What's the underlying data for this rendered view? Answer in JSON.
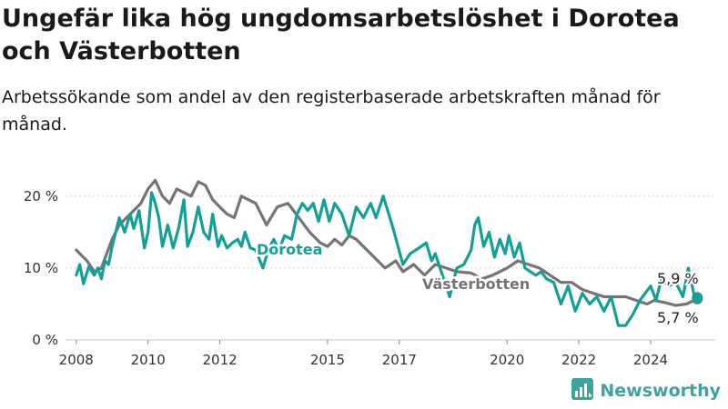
{
  "title": "Ungefär lika hög ungdomsarbetslöshet i Dorotea och Västerbotten",
  "subtitle": "Arbetssökande som andel av den registerbaserade arbetskraften månad för månad.",
  "brand": {
    "name": "Newsworthy",
    "icon": "bar-chart-logo-icon"
  },
  "colors": {
    "dorotea": "#14a096",
    "vasterbotten": "#777477",
    "grid": "#d0d0d0"
  },
  "chart_data": {
    "type": "line",
    "title": "Ungefär lika hög ungdomsarbetslöshet i Dorotea och Västerbotten",
    "subtitle": "Arbetssökande som andel av den registerbaserade arbetskraften månad för månad.",
    "xlabel": "",
    "ylabel": "",
    "x_unit": "year",
    "xlim": [
      2007.6,
      2025.8
    ],
    "ylim": [
      0,
      22
    ],
    "grid": true,
    "yticks": [
      {
        "value": 0,
        "label": "0 %"
      },
      {
        "value": 10,
        "label": "10 %"
      },
      {
        "value": 20,
        "label": "20 %"
      }
    ],
    "xticks": [
      {
        "value": 2008,
        "label": "2008"
      },
      {
        "value": 2010,
        "label": "2010"
      },
      {
        "value": 2012,
        "label": "2012"
      },
      {
        "value": 2015,
        "label": "2015"
      },
      {
        "value": 2017,
        "label": "2017"
      },
      {
        "value": 2020,
        "label": "2020"
      },
      {
        "value": 2022,
        "label": "2022"
      },
      {
        "value": 2024,
        "label": "2024"
      }
    ],
    "series": [
      {
        "name": "Västerbotten",
        "color": "#777477",
        "end_label": "5,7 %",
        "points": [
          [
            2008.0,
            12.5
          ],
          [
            2008.3,
            11.0
          ],
          [
            2008.5,
            9.5
          ],
          [
            2008.7,
            10.0
          ],
          [
            2009.0,
            14.0
          ],
          [
            2009.2,
            16.0
          ],
          [
            2009.5,
            17.5
          ],
          [
            2009.8,
            19.0
          ],
          [
            2010.0,
            21.0
          ],
          [
            2010.2,
            22.2
          ],
          [
            2010.4,
            20.0
          ],
          [
            2010.6,
            19.0
          ],
          [
            2010.8,
            21.0
          ],
          [
            2011.0,
            20.5
          ],
          [
            2011.2,
            20.0
          ],
          [
            2011.4,
            22.0
          ],
          [
            2011.6,
            21.5
          ],
          [
            2011.8,
            19.5
          ],
          [
            2012.0,
            18.5
          ],
          [
            2012.2,
            17.5
          ],
          [
            2012.4,
            17.0
          ],
          [
            2012.6,
            20.0
          ],
          [
            2012.8,
            19.5
          ],
          [
            2013.0,
            19.0
          ],
          [
            2013.3,
            16.0
          ],
          [
            2013.6,
            18.5
          ],
          [
            2013.9,
            19.0
          ],
          [
            2014.2,
            17.0
          ],
          [
            2014.5,
            15.0
          ],
          [
            2014.8,
            13.5
          ],
          [
            2015.0,
            13.0
          ],
          [
            2015.2,
            14.0
          ],
          [
            2015.4,
            13.2
          ],
          [
            2015.6,
            14.5
          ],
          [
            2015.8,
            14.0
          ],
          [
            2016.0,
            13.0
          ],
          [
            2016.3,
            11.5
          ],
          [
            2016.6,
            10.0
          ],
          [
            2016.9,
            11.0
          ],
          [
            2017.1,
            9.5
          ],
          [
            2017.4,
            10.5
          ],
          [
            2017.7,
            9.0
          ],
          [
            2018.0,
            10.5
          ],
          [
            2018.3,
            10.0
          ],
          [
            2018.6,
            9.5
          ],
          [
            2019.0,
            9.3
          ],
          [
            2019.3,
            8.5
          ],
          [
            2019.6,
            9.0
          ],
          [
            2020.0,
            10.0
          ],
          [
            2020.3,
            11.0
          ],
          [
            2020.6,
            10.5
          ],
          [
            2020.9,
            10.0
          ],
          [
            2021.2,
            9.0
          ],
          [
            2021.5,
            8.0
          ],
          [
            2021.8,
            8.0
          ],
          [
            2022.1,
            7.0
          ],
          [
            2022.4,
            6.5
          ],
          [
            2022.7,
            6.0
          ],
          [
            2023.0,
            6.0
          ],
          [
            2023.3,
            6.0
          ],
          [
            2023.6,
            5.5
          ],
          [
            2023.9,
            5.0
          ],
          [
            2024.1,
            5.5
          ],
          [
            2024.4,
            5.2
          ],
          [
            2024.7,
            4.8
          ],
          [
            2025.0,
            5.0
          ],
          [
            2025.3,
            5.7
          ]
        ]
      },
      {
        "name": "Dorotea",
        "color": "#14a096",
        "end_label": "5,9 %",
        "points": [
          [
            2008.0,
            9.0
          ],
          [
            2008.1,
            10.5
          ],
          [
            2008.2,
            7.8
          ],
          [
            2008.35,
            10.2
          ],
          [
            2008.5,
            9.0
          ],
          [
            2008.6,
            10.0
          ],
          [
            2008.7,
            8.5
          ],
          [
            2008.8,
            11.0
          ],
          [
            2008.9,
            10.5
          ],
          [
            2009.0,
            13.0
          ],
          [
            2009.1,
            15.0
          ],
          [
            2009.2,
            17.0
          ],
          [
            2009.35,
            15.0
          ],
          [
            2009.5,
            17.5
          ],
          [
            2009.6,
            15.5
          ],
          [
            2009.75,
            18.0
          ],
          [
            2009.9,
            12.8
          ],
          [
            2010.0,
            15.0
          ],
          [
            2010.1,
            20.5
          ],
          [
            2010.2,
            19.0
          ],
          [
            2010.3,
            17.0
          ],
          [
            2010.4,
            13.0
          ],
          [
            2010.55,
            16.0
          ],
          [
            2010.7,
            12.8
          ],
          [
            2010.85,
            15.5
          ],
          [
            2011.0,
            19.5
          ],
          [
            2011.1,
            13.0
          ],
          [
            2011.25,
            15.0
          ],
          [
            2011.4,
            18.5
          ],
          [
            2011.55,
            15.0
          ],
          [
            2011.7,
            14.0
          ],
          [
            2011.8,
            17.5
          ],
          [
            2011.95,
            13.0
          ],
          [
            2012.05,
            14.5
          ],
          [
            2012.2,
            12.8
          ],
          [
            2012.35,
            13.5
          ],
          [
            2012.5,
            14.0
          ],
          [
            2012.6,
            13.0
          ],
          [
            2012.7,
            15.0
          ],
          [
            2012.85,
            12.8
          ],
          [
            2013.0,
            12.5
          ],
          [
            2013.2,
            10.0
          ],
          [
            2013.35,
            12.5
          ],
          [
            2013.5,
            14.0
          ],
          [
            2013.65,
            12.5
          ],
          [
            2013.8,
            14.5
          ],
          [
            2014.0,
            14.0
          ],
          [
            2014.15,
            17.5
          ],
          [
            2014.3,
            19.0
          ],
          [
            2014.45,
            18.0
          ],
          [
            2014.6,
            19.0
          ],
          [
            2014.75,
            16.5
          ],
          [
            2014.9,
            19.5
          ],
          [
            2015.05,
            16.5
          ],
          [
            2015.2,
            19.0
          ],
          [
            2015.4,
            17.5
          ],
          [
            2015.6,
            14.5
          ],
          [
            2015.8,
            18.5
          ],
          [
            2016.0,
            17.0
          ],
          [
            2016.2,
            19.0
          ],
          [
            2016.35,
            17.0
          ],
          [
            2016.55,
            20.0
          ],
          [
            2016.8,
            16.0
          ],
          [
            2017.1,
            10.5
          ],
          [
            2017.3,
            12.0
          ],
          [
            2017.55,
            12.8
          ],
          [
            2017.75,
            13.5
          ],
          [
            2017.9,
            11.0
          ],
          [
            2018.0,
            12.0
          ],
          [
            2018.2,
            9.0
          ],
          [
            2018.4,
            6.0
          ],
          [
            2018.6,
            10.0
          ],
          [
            2018.8,
            10.5
          ],
          [
            2019.0,
            12.5
          ],
          [
            2019.1,
            16.0
          ],
          [
            2019.2,
            17.0
          ],
          [
            2019.35,
            13.0
          ],
          [
            2019.5,
            15.0
          ],
          [
            2019.65,
            11.5
          ],
          [
            2019.8,
            14.0
          ],
          [
            2019.95,
            12.0
          ],
          [
            2020.05,
            14.5
          ],
          [
            2020.2,
            11.5
          ],
          [
            2020.35,
            13.5
          ],
          [
            2020.5,
            10.0
          ],
          [
            2020.65,
            9.5
          ],
          [
            2020.8,
            9.0
          ],
          [
            2020.95,
            9.5
          ],
          [
            2021.1,
            8.5
          ],
          [
            2021.3,
            8.0
          ],
          [
            2021.5,
            5.0
          ],
          [
            2021.7,
            7.5
          ],
          [
            2021.9,
            4.0
          ],
          [
            2022.1,
            6.5
          ],
          [
            2022.3,
            5.0
          ],
          [
            2022.5,
            6.0
          ],
          [
            2022.7,
            4.0
          ],
          [
            2022.9,
            6.0
          ],
          [
            2023.1,
            2.0
          ],
          [
            2023.3,
            2.0
          ],
          [
            2023.5,
            3.5
          ],
          [
            2023.7,
            5.5
          ],
          [
            2023.85,
            6.5
          ],
          [
            2024.0,
            7.5
          ],
          [
            2024.15,
            5.5
          ],
          [
            2024.3,
            8.5
          ],
          [
            2024.5,
            7.5
          ],
          [
            2024.7,
            8.0
          ],
          [
            2024.9,
            6.0
          ],
          [
            2025.05,
            10.0
          ],
          [
            2025.2,
            6.5
          ],
          [
            2025.3,
            5.9
          ]
        ]
      }
    ]
  }
}
